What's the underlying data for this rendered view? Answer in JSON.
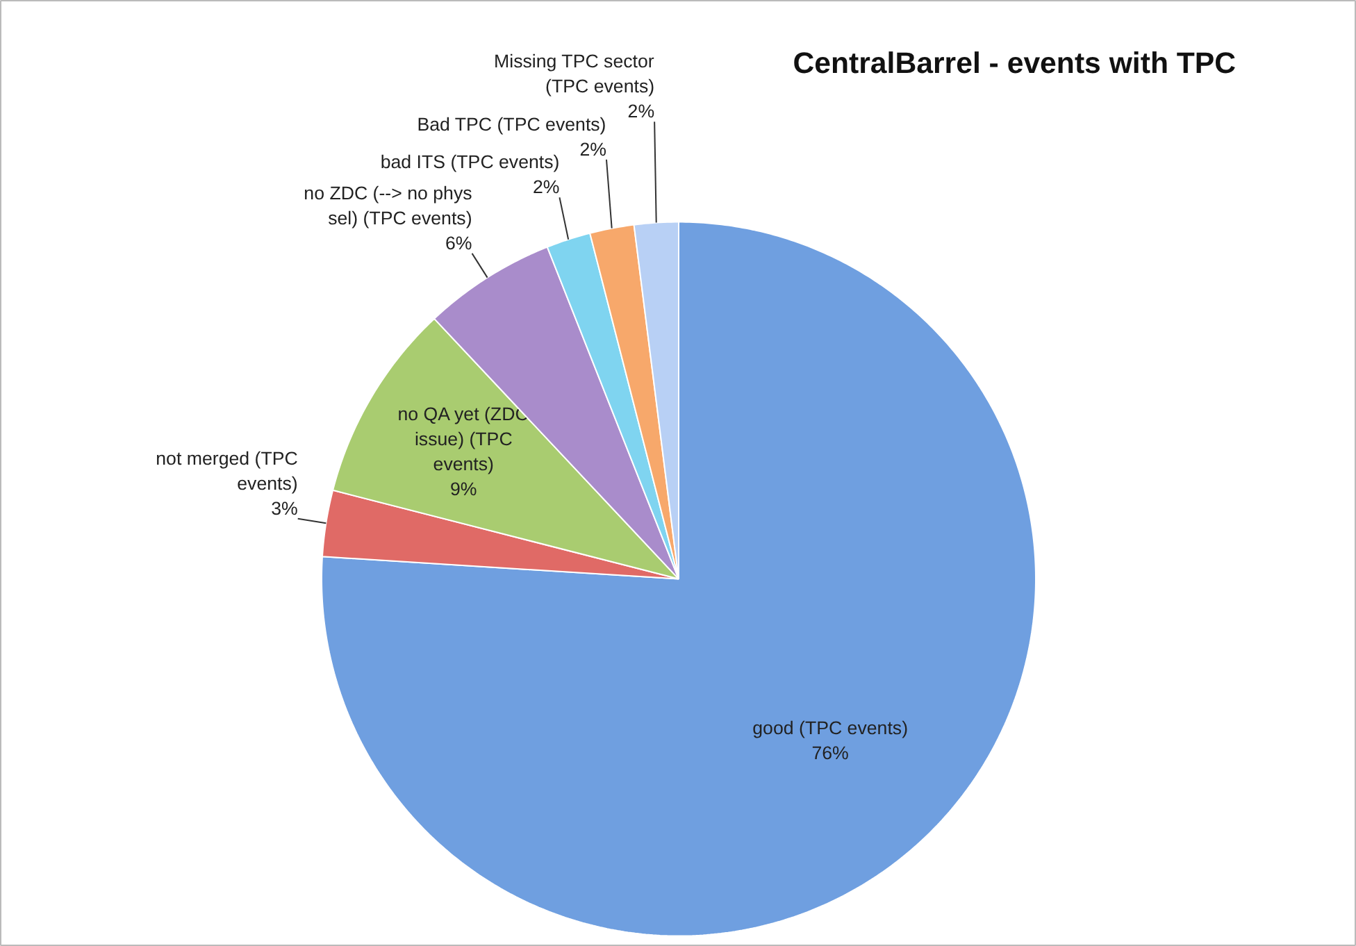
{
  "chart_data": {
    "type": "pie",
    "title": "CentralBarrel - events with TPC",
    "categories": [
      "good (TPC events)",
      "not merged (TPC events)",
      "no QA yet (ZDC issue) (TPC events)",
      "no ZDC (--> no phys sel) (TPC events)",
      "bad ITS (TPC events)",
      "Bad TPC (TPC events)",
      "Missing TPC sector (TPC events)"
    ],
    "values": [
      76,
      3,
      9,
      6,
      2,
      2,
      2
    ],
    "value_labels": [
      "76%",
      "3%",
      "9%",
      "6%",
      "2%",
      "2%",
      "2%"
    ],
    "colors": [
      "#6f9fe0",
      "#e06a66",
      "#a9cc70",
      "#a98ccb",
      "#7fd4f0",
      "#f7a86b",
      "#b8d0f5"
    ]
  }
}
